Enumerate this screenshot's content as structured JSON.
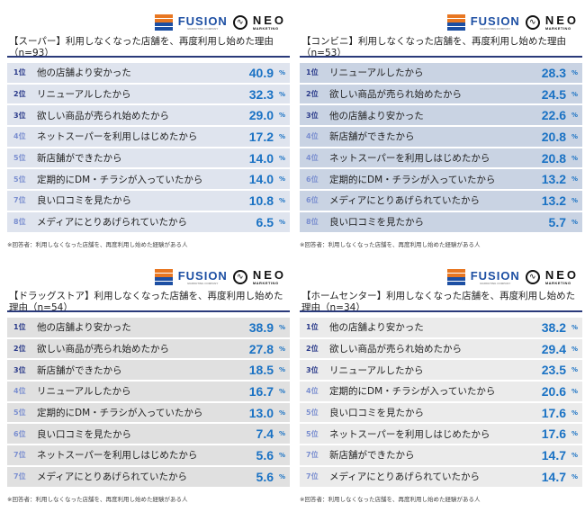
{
  "logo": {
    "fusion": "FUSION",
    "fusion_sub": "MARKETING COMPANY",
    "neo": "NEO",
    "neo_sub": "MARKETING"
  },
  "colors": {
    "value": "#1a72c4",
    "rank_top": "#2a3a8a",
    "rank_other": "#7b8fd0",
    "rule": "#2a3a7a"
  },
  "footnote": "※回答者：利用しなくなった店舗を、再度利用し始めた経験がある人",
  "panels": [
    {
      "title": "【スーパー】利用しなくなった店舗を、再度利用し始めた理由（n=93）",
      "row_color": "#dfe4ee",
      "rows": [
        {
          "rank": "1位",
          "label": "他の店舗より安かった",
          "value": "40.9",
          "unit": "%"
        },
        {
          "rank": "2位",
          "label": "リニューアルしたから",
          "value": "32.3",
          "unit": "%"
        },
        {
          "rank": "3位",
          "label": "欲しい商品が売られ始めたから",
          "value": "29.0",
          "unit": "%"
        },
        {
          "rank": "4位",
          "label": "ネットスーパーを利用しはじめたから",
          "value": "17.2",
          "unit": "%"
        },
        {
          "rank": "5位",
          "label": "新店舗ができたから",
          "value": "14.0",
          "unit": "%"
        },
        {
          "rank": "5位",
          "label": "定期的にDM・チラシが入っていたから",
          "value": "14.0",
          "unit": "%"
        },
        {
          "rank": "7位",
          "label": "良い口コミを見たから",
          "value": "10.8",
          "unit": "%"
        },
        {
          "rank": "8位",
          "label": "メディアにとりあげられていたから",
          "value": "6.5",
          "unit": "%"
        }
      ]
    },
    {
      "title": "【コンビニ】利用しなくなった店舗を、再度利用し始めた理由（n=53）",
      "row_color": "#c9d3e3",
      "rows": [
        {
          "rank": "1位",
          "label": "リニューアルしたから",
          "value": "28.3",
          "unit": "%"
        },
        {
          "rank": "2位",
          "label": "欲しい商品が売られ始めたから",
          "value": "24.5",
          "unit": "%"
        },
        {
          "rank": "3位",
          "label": "他の店舗より安かった",
          "value": "22.6",
          "unit": "%"
        },
        {
          "rank": "4位",
          "label": "新店舗ができたから",
          "value": "20.8",
          "unit": "%"
        },
        {
          "rank": "4位",
          "label": "ネットスーパーを利用しはじめたから",
          "value": "20.8",
          "unit": "%"
        },
        {
          "rank": "6位",
          "label": "定期的にDM・チラシが入っていたから",
          "value": "13.2",
          "unit": "%"
        },
        {
          "rank": "6位",
          "label": "メディアにとりあげられていたから",
          "value": "13.2",
          "unit": "%"
        },
        {
          "rank": "8位",
          "label": "良い口コミを見たから",
          "value": "5.7",
          "unit": "%"
        }
      ]
    },
    {
      "title": "【ドラッグストア】利用しなくなった店舗を、再度利用し始めた理由（n=54）",
      "row_color": "#e0e0e0",
      "rows": [
        {
          "rank": "1位",
          "label": "他の店舗より安かった",
          "value": "38.9",
          "unit": "%"
        },
        {
          "rank": "2位",
          "label": "欲しい商品が売られ始めたから",
          "value": "27.8",
          "unit": "%"
        },
        {
          "rank": "3位",
          "label": "新店舗ができたから",
          "value": "18.5",
          "unit": "%"
        },
        {
          "rank": "4位",
          "label": "リニューアルしたから",
          "value": "16.7",
          "unit": "%"
        },
        {
          "rank": "5位",
          "label": "定期的にDM・チラシが入っていたから",
          "value": "13.0",
          "unit": "%"
        },
        {
          "rank": "6位",
          "label": "良い口コミを見たから",
          "value": "7.4",
          "unit": "%"
        },
        {
          "rank": "7位",
          "label": "ネットスーパーを利用しはじめたから",
          "value": "5.6",
          "unit": "%"
        },
        {
          "rank": "7位",
          "label": "メディアにとりあげられていたから",
          "value": "5.6",
          "unit": "%"
        }
      ]
    },
    {
      "title": "【ホームセンター】利用しなくなった店舗を、再度利用し始めた理由（n=34）",
      "row_color": "#ebebeb",
      "rows": [
        {
          "rank": "1位",
          "label": "他の店舗より安かった",
          "value": "38.2",
          "unit": "%"
        },
        {
          "rank": "2位",
          "label": "欲しい商品が売られ始めたから",
          "value": "29.4",
          "unit": "%"
        },
        {
          "rank": "3位",
          "label": "リニューアルしたから",
          "value": "23.5",
          "unit": "%"
        },
        {
          "rank": "4位",
          "label": "定期的にDM・チラシが入っていたから",
          "value": "20.6",
          "unit": "%"
        },
        {
          "rank": "5位",
          "label": "良い口コミを見たから",
          "value": "17.6",
          "unit": "%"
        },
        {
          "rank": "5位",
          "label": "ネットスーパーを利用しはじめたから",
          "value": "17.6",
          "unit": "%"
        },
        {
          "rank": "7位",
          "label": "新店舗ができたから",
          "value": "14.7",
          "unit": "%"
        },
        {
          "rank": "7位",
          "label": "メディアにとりあげられていたから",
          "value": "14.7",
          "unit": "%"
        }
      ]
    }
  ]
}
